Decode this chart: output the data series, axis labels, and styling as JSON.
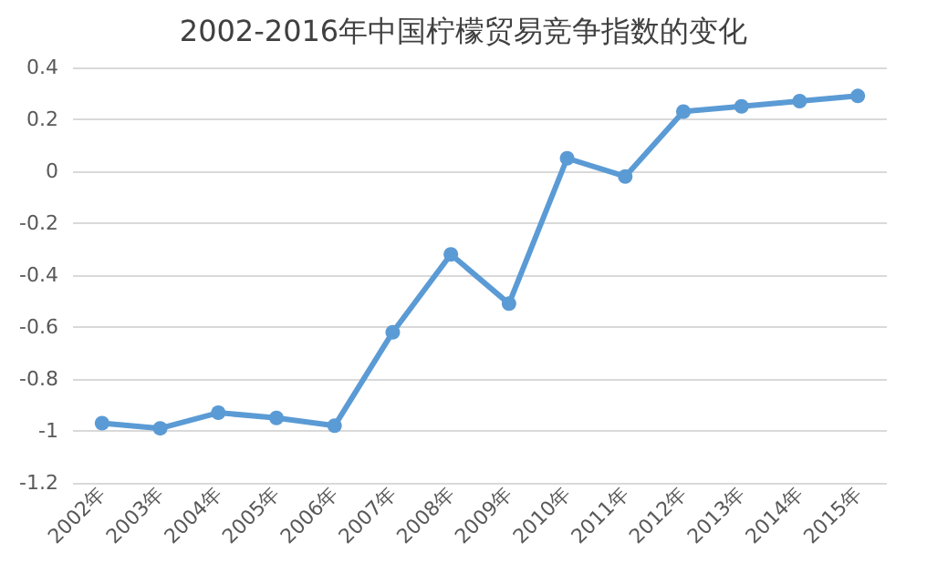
{
  "chart_data": {
    "type": "line",
    "title": "2002-2016年中国柠檬贸易竞争指数的变化",
    "categories": [
      "2002年",
      "2003年",
      "2004年",
      "2005年",
      "2006年",
      "2007年",
      "2008年",
      "2009年",
      "2010年",
      "2011年",
      "2012年",
      "2013年",
      "2014年",
      "2015年"
    ],
    "series": [
      {
        "color": "#5b9bd5",
        "values": [
          -0.97,
          -0.99,
          -0.93,
          -0.95,
          -0.98,
          -0.62,
          -0.32,
          -0.51,
          0.05,
          -0.02,
          0.23,
          0.25,
          0.27,
          0.29
        ]
      }
    ],
    "ylim": [
      -1.2,
      0.4
    ],
    "yticks": [
      -1.2,
      -1,
      -0.8,
      -0.6,
      -0.4,
      -0.2,
      0,
      0.2,
      0.4
    ],
    "grid": "y",
    "marker": "circle",
    "line_style": "solid"
  }
}
